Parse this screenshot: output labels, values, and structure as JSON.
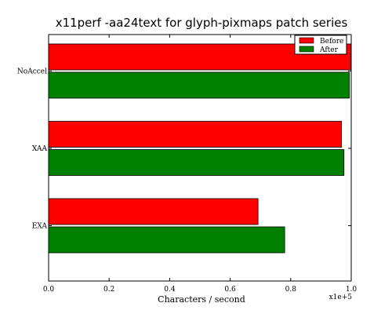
{
  "chart_data": {
    "type": "bar",
    "orientation": "horizontal",
    "title": "x11perf -aa24text for glyph-pixmaps patch series",
    "xlabel": "Characters / second",
    "ylabel": "",
    "x_scale_label": "x1e+5",
    "xlim": [
      0,
      1.0
    ],
    "x_ticks": [
      "0.0",
      "0.2",
      "0.4",
      "0.6",
      "0.8",
      "1.0"
    ],
    "categories": [
      "NoAccel",
      "XAA",
      "EXA"
    ],
    "series": [
      {
        "name": "Before",
        "color": "#ff0000",
        "values": [
          0.998,
          0.968,
          0.692
        ]
      },
      {
        "name": "After",
        "color": "#008000",
        "values": [
          0.994,
          0.976,
          0.78
        ]
      }
    ],
    "legend": {
      "placement": "top-right"
    },
    "grid": false
  }
}
